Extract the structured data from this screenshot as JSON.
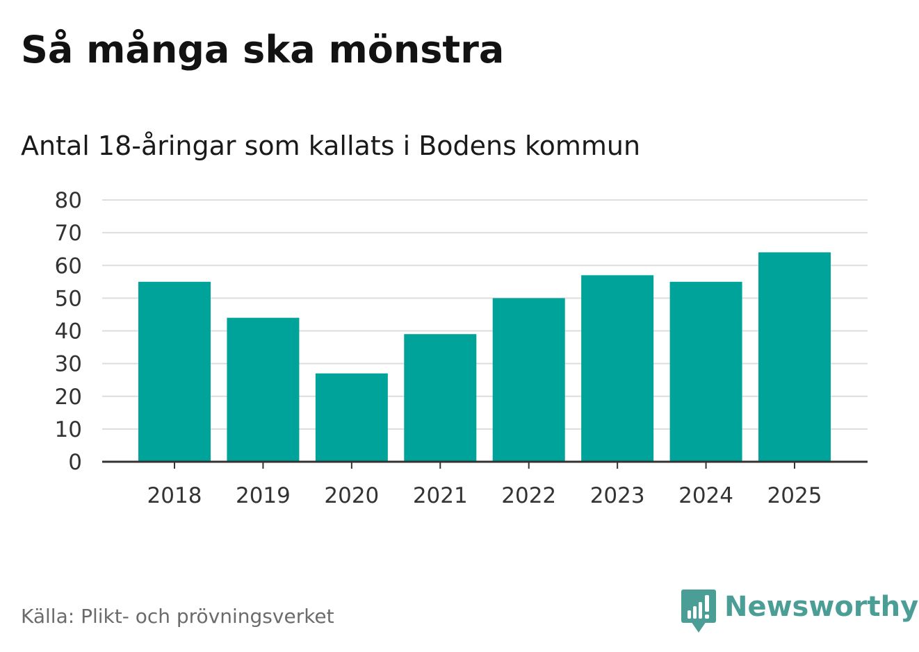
{
  "title": "Så många ska mönstra",
  "subtitle": "Antal 18-åringar som kallats i Bodens kommun",
  "source": "Källa: Plikt- och prövningsverket",
  "brand": {
    "name": "Newsworthy",
    "icon": "newsworthy-logo-icon",
    "color": "#4a9e96"
  },
  "colors": {
    "bar": "#00a39a",
    "grid": "#dddddd",
    "axis": "#333333",
    "tick_text": "#333333"
  },
  "chart_data": {
    "type": "bar",
    "title": "Så många ska mönstra",
    "subtitle": "Antal 18-åringar som kallats i Bodens kommun",
    "xlabel": "",
    "ylabel": "",
    "categories": [
      "2018",
      "2019",
      "2020",
      "2021",
      "2022",
      "2023",
      "2024",
      "2025"
    ],
    "values": [
      55,
      44,
      27,
      39,
      50,
      57,
      55,
      64
    ],
    "ylim": [
      0,
      80
    ],
    "yticks": [
      0,
      10,
      20,
      30,
      40,
      50,
      60,
      70,
      80
    ],
    "grid": true,
    "legend": "none"
  }
}
